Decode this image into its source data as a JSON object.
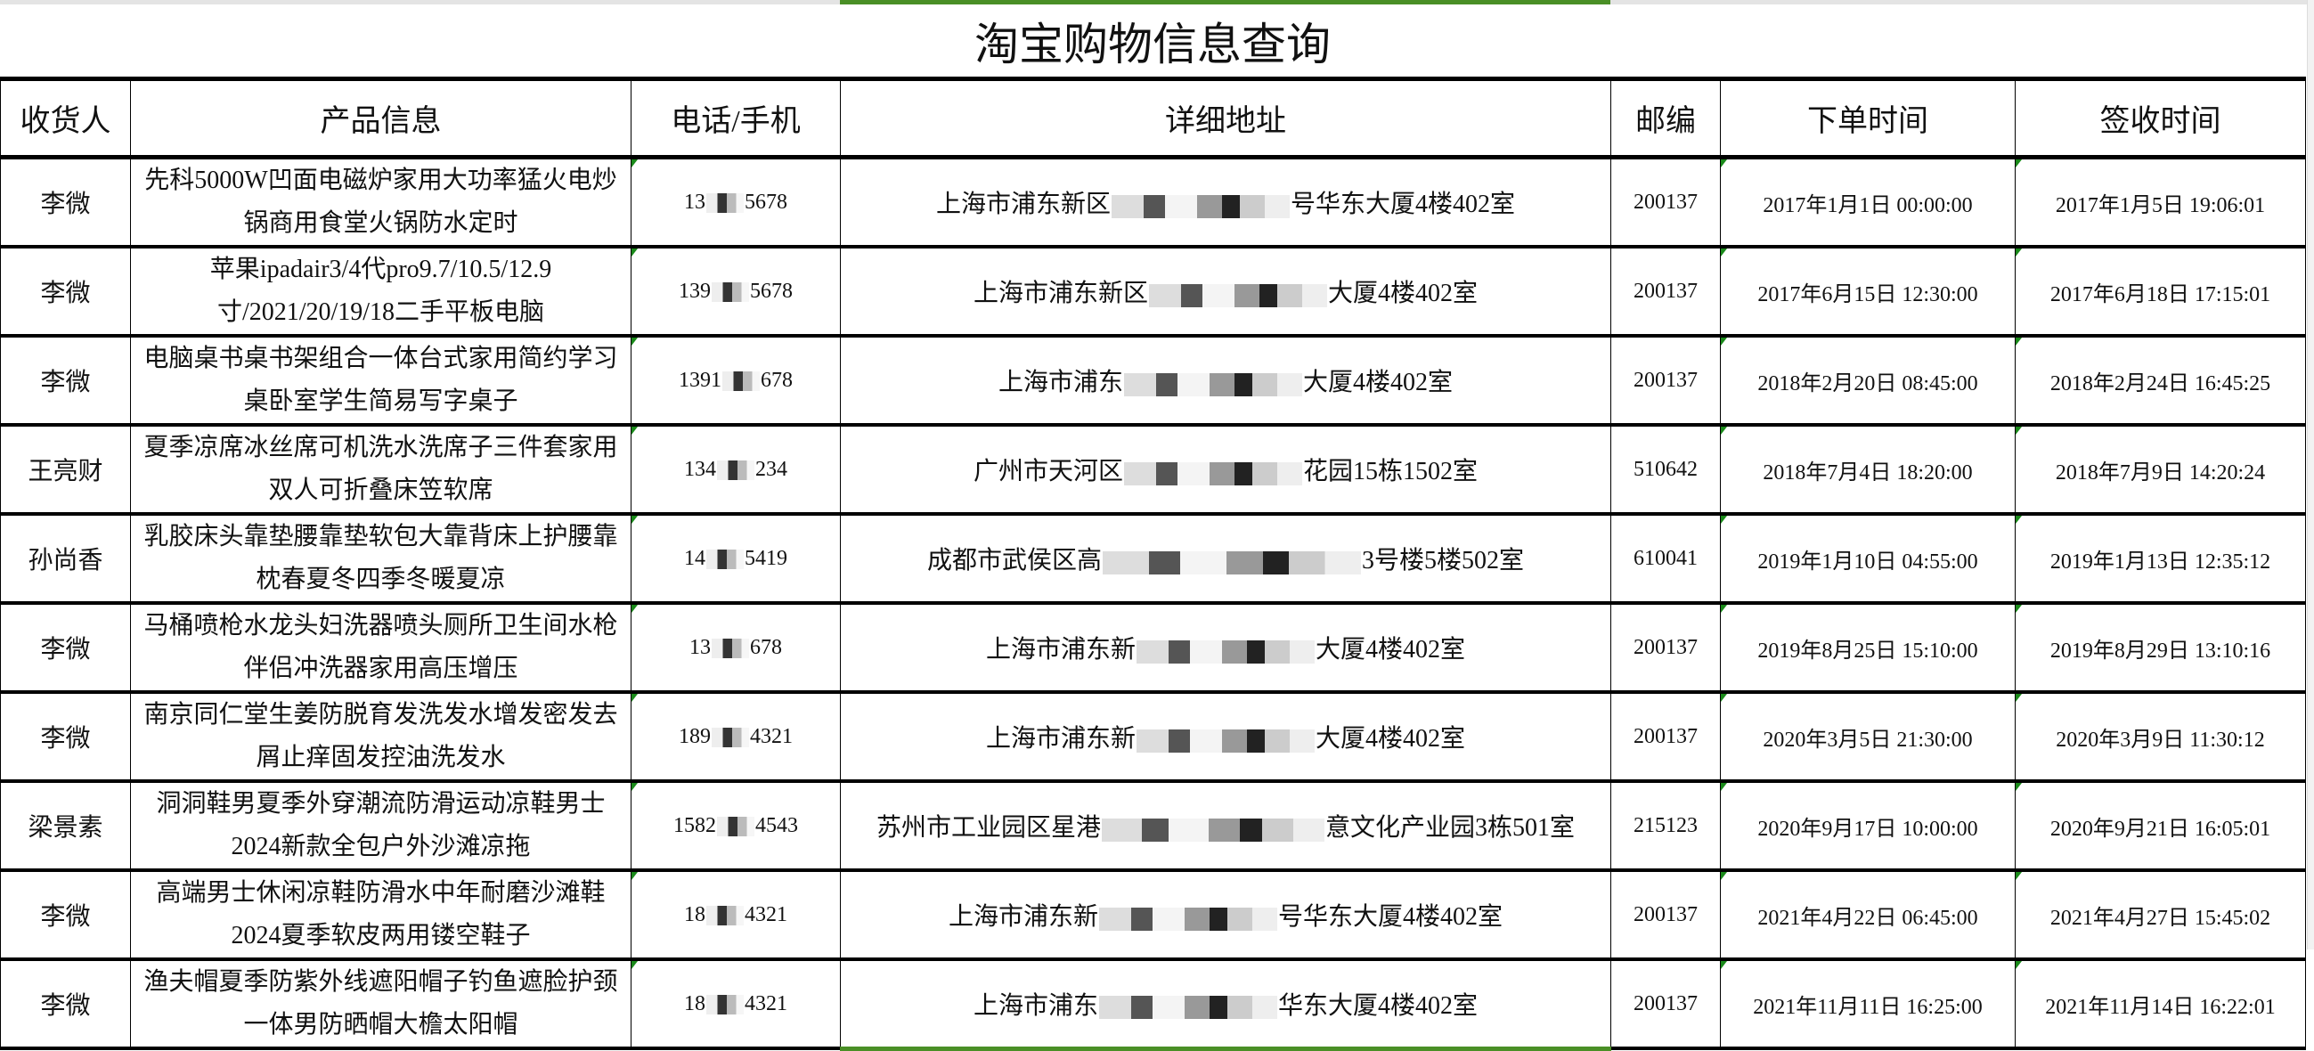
{
  "title": "淘宝购物信息查询",
  "columns": [
    "收货人",
    "产品信息",
    "电话/手机",
    "详细地址",
    "邮编",
    "下单时间",
    "签收时间"
  ],
  "colors": {
    "selection_accent": "#4a8f26",
    "comment_marker": "#1a8a1a"
  },
  "rows": [
    {
      "name": "李微",
      "product": "先科5000W凹面电磁炉家用大功率猛火电炒锅商用食堂火锅防水定时",
      "phone_prefix": "13",
      "phone_suffix": "5678",
      "addr_prefix": "上海市浦东新区",
      "addr_suffix": "号华东大厦4楼402室",
      "zip": "200137",
      "order_time": "2017年1月1日 00:00:00",
      "sign_time": "2017年1月5日 19:06:01"
    },
    {
      "name": "李微",
      "product": "苹果ipadair3/4代pro9.7/10.5/12.9寸/2021/20/19/18二手平板电脑",
      "phone_prefix": "139",
      "phone_suffix": "5678",
      "addr_prefix": "上海市浦东新区",
      "addr_suffix": "大厦4楼402室",
      "zip": "200137",
      "order_time": "2017年6月15日 12:30:00",
      "sign_time": "2017年6月18日 17:15:01"
    },
    {
      "name": "李微",
      "product": "电脑桌书桌书架组合一体台式家用简约学习桌卧室学生简易写字桌子",
      "phone_prefix": "1391",
      "phone_suffix": "678",
      "addr_prefix": "上海市浦东",
      "addr_suffix": "大厦4楼402室",
      "zip": "200137",
      "order_time": "2018年2月20日 08:45:00",
      "sign_time": "2018年2月24日 16:45:25"
    },
    {
      "name": "王亮财",
      "product": "夏季凉席冰丝席可机洗水洗席子三件套家用双人可折叠床笠软席",
      "phone_prefix": "134",
      "phone_suffix": "234",
      "addr_prefix": "广州市天河区",
      "addr_suffix": "花园15栋1502室",
      "zip": "510642",
      "order_time": "2018年7月4日 18:20:00",
      "sign_time": "2018年7月9日 14:20:24"
    },
    {
      "name": "孙尚香",
      "product": "乳胶床头靠垫腰靠垫软包大靠背床上护腰靠枕春夏冬四季冬暖夏凉",
      "phone_prefix": "14",
      "phone_suffix": "5419",
      "addr_prefix": "成都市武侯区高",
      "addr_suffix": "3号楼5楼502室",
      "zip": "610041",
      "order_time": "2019年1月10日 04:55:00",
      "sign_time": "2019年1月13日 12:35:12"
    },
    {
      "name": "李微",
      "product": "马桶喷枪水龙头妇洗器喷头厕所卫生间水枪伴侣冲洗器家用高压增压",
      "phone_prefix": "13",
      "phone_suffix": "678",
      "addr_prefix": "上海市浦东新",
      "addr_suffix": "大厦4楼402室",
      "zip": "200137",
      "order_time": "2019年8月25日 15:10:00",
      "sign_time": "2019年8月29日 13:10:16"
    },
    {
      "name": "李微",
      "product": "南京同仁堂生姜防脱育发洗发水增发密发去屑止痒固发控油洗发水",
      "phone_prefix": "189",
      "phone_suffix": "4321",
      "addr_prefix": "上海市浦东新",
      "addr_suffix": "大厦4楼402室",
      "zip": "200137",
      "order_time": "2020年3月5日 21:30:00",
      "sign_time": "2020年3月9日 11:30:12"
    },
    {
      "name": "梁景素",
      "product": "洞洞鞋男夏季外穿潮流防滑运动凉鞋男士2024新款全包户外沙滩凉拖",
      "phone_prefix": "1582",
      "phone_suffix": "4543",
      "addr_prefix": "苏州市工业园区星港",
      "addr_suffix": "意文化产业园3栋501室",
      "zip": "215123",
      "order_time": "2020年9月17日 10:00:00",
      "sign_time": "2020年9月21日 16:05:01"
    },
    {
      "name": "李微",
      "product": "高端男士休闲凉鞋防滑水中年耐磨沙滩鞋2024夏季软皮两用镂空鞋子",
      "phone_prefix": "18",
      "phone_suffix": "4321",
      "addr_prefix": "上海市浦东新",
      "addr_suffix": "号华东大厦4楼402室",
      "zip": "200137",
      "order_time": "2021年4月22日 06:45:00",
      "sign_time": "2021年4月27日 15:45:02"
    },
    {
      "name": "李微",
      "product": "渔夫帽夏季防紫外线遮阳帽子钓鱼遮脸护颈一体男防晒帽大檐太阳帽",
      "phone_prefix": "18",
      "phone_suffix": "4321",
      "addr_prefix": "上海市浦东",
      "addr_suffix": "华东大厦4楼402室",
      "zip": "200137",
      "order_time": "2021年11月11日 16:25:00",
      "sign_time": "2021年11月14日 16:22:01"
    }
  ]
}
